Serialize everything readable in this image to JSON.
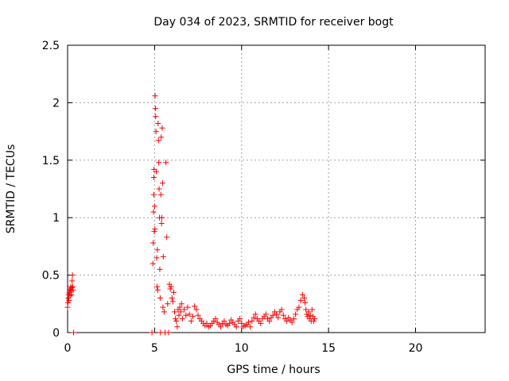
{
  "chart_data": {
    "type": "scatter",
    "title": "Day 034 of 2023, SRMTID for receiver bogt",
    "xlabel": "GPS time / hours",
    "ylabel": "SRMTID / TECUs",
    "xlim": [
      0,
      24
    ],
    "ylim": [
      0,
      2.5
    ],
    "x_ticks": [
      0,
      5,
      10,
      15,
      20
    ],
    "x_tick_labels": [
      "0",
      "5",
      "10",
      "15",
      "20"
    ],
    "y_ticks": [
      0,
      0.5,
      1,
      1.5,
      2,
      2.5
    ],
    "y_tick_labels": [
      "0",
      "0.5",
      "1",
      "1.5",
      "2",
      "2.5"
    ],
    "grid": true,
    "marker": "+",
    "series_color": "#ff0000",
    "series": [
      {
        "name": "SRMTID",
        "points": [
          [
            0.0,
            0.22
          ],
          [
            0.02,
            0.26
          ],
          [
            0.04,
            0.3
          ],
          [
            0.06,
            0.33
          ],
          [
            0.08,
            0.28
          ],
          [
            0.1,
            0.35
          ],
          [
            0.12,
            0.37
          ],
          [
            0.14,
            0.32
          ],
          [
            0.16,
            0.38
          ],
          [
            0.18,
            0.4
          ],
          [
            0.2,
            0.36
          ],
          [
            0.22,
            0.33
          ],
          [
            0.24,
            0.39
          ],
          [
            0.26,
            0.45
          ],
          [
            0.28,
            0.5
          ],
          [
            0.3,
            0.4
          ],
          [
            0.32,
            0.37
          ],
          [
            0.34,
            0.0
          ],
          [
            4.85,
            0.0
          ],
          [
            4.9,
            0.6
          ],
          [
            4.92,
            0.78
          ],
          [
            4.94,
            1.05
          ],
          [
            4.95,
            1.2
          ],
          [
            4.96,
            1.35
          ],
          [
            4.97,
            1.42
          ],
          [
            4.98,
            0.88
          ],
          [
            5.0,
            1.1
          ],
          [
            5.02,
            0.9
          ],
          [
            5.03,
            2.06
          ],
          [
            5.05,
            1.95
          ],
          [
            5.06,
            1.88
          ],
          [
            5.08,
            1.75
          ],
          [
            5.1,
            1.4
          ],
          [
            5.12,
            0.65
          ],
          [
            5.14,
            0.4
          ],
          [
            5.16,
            0.72
          ],
          [
            5.18,
            0.37
          ],
          [
            5.2,
            1.82
          ],
          [
            5.22,
            1.67
          ],
          [
            5.24,
            1.48
          ],
          [
            5.26,
            1.25
          ],
          [
            5.28,
            1.0
          ],
          [
            5.3,
            0.55
          ],
          [
            5.32,
            0.3
          ],
          [
            5.34,
            0.0
          ],
          [
            5.36,
            1.2
          ],
          [
            5.38,
            1.7
          ],
          [
            5.4,
            0.95
          ],
          [
            5.42,
            1.0
          ],
          [
            5.44,
            1.78
          ],
          [
            5.46,
            1.3
          ],
          [
            5.48,
            0.22
          ],
          [
            5.5,
            0.66
          ],
          [
            5.55,
            0.18
          ],
          [
            5.6,
            0.0
          ],
          [
            5.65,
            1.48
          ],
          [
            5.7,
            0.83
          ],
          [
            5.75,
            0.25
          ],
          [
            5.8,
            0.0
          ],
          [
            5.85,
            0.42
          ],
          [
            5.9,
            0.38
          ],
          [
            5.95,
            0.4
          ],
          [
            6.0,
            0.3
          ],
          [
            6.05,
            0.27
          ],
          [
            6.1,
            0.35
          ],
          [
            6.15,
            0.18
          ],
          [
            6.2,
            0.12
          ],
          [
            6.25,
            0.1
          ],
          [
            6.3,
            0.05
          ],
          [
            6.35,
            0.2
          ],
          [
            6.4,
            0.15
          ],
          [
            6.45,
            0.22
          ],
          [
            6.5,
            0.18
          ],
          [
            6.55,
            0.25
          ],
          [
            6.6,
            0.12
          ],
          [
            6.7,
            0.2
          ],
          [
            6.8,
            0.15
          ],
          [
            6.9,
            0.22
          ],
          [
            7.0,
            0.16
          ],
          [
            7.1,
            0.1
          ],
          [
            7.2,
            0.14
          ],
          [
            7.3,
            0.23
          ],
          [
            7.4,
            0.2
          ],
          [
            7.5,
            0.15
          ],
          [
            7.6,
            0.12
          ],
          [
            7.7,
            0.1
          ],
          [
            7.8,
            0.08
          ],
          [
            7.9,
            0.06
          ],
          [
            8.0,
            0.08
          ],
          [
            8.1,
            0.05
          ],
          [
            8.2,
            0.06
          ],
          [
            8.3,
            0.08
          ],
          [
            8.4,
            0.1
          ],
          [
            8.5,
            0.12
          ],
          [
            8.6,
            0.09
          ],
          [
            8.7,
            0.07
          ],
          [
            8.8,
            0.05
          ],
          [
            8.9,
            0.08
          ],
          [
            9.0,
            0.1
          ],
          [
            9.1,
            0.07
          ],
          [
            9.2,
            0.06
          ],
          [
            9.3,
            0.08
          ],
          [
            9.4,
            0.11
          ],
          [
            9.5,
            0.09
          ],
          [
            9.6,
            0.07
          ],
          [
            9.7,
            0.05
          ],
          [
            9.8,
            0.1
          ],
          [
            9.9,
            0.12
          ],
          [
            10.0,
            0.08
          ],
          [
            10.1,
            0.05
          ],
          [
            10.2,
            0.06
          ],
          [
            10.3,
            0.07
          ],
          [
            10.4,
            0.09
          ],
          [
            10.5,
            0.05
          ],
          [
            10.6,
            0.1
          ],
          [
            10.7,
            0.13
          ],
          [
            10.8,
            0.16
          ],
          [
            10.9,
            0.12
          ],
          [
            11.0,
            0.1
          ],
          [
            11.1,
            0.08
          ],
          [
            11.2,
            0.12
          ],
          [
            11.3,
            0.14
          ],
          [
            11.4,
            0.16
          ],
          [
            11.5,
            0.12
          ],
          [
            11.6,
            0.1
          ],
          [
            11.7,
            0.13
          ],
          [
            11.8,
            0.15
          ],
          [
            11.9,
            0.18
          ],
          [
            12.0,
            0.16
          ],
          [
            12.1,
            0.13
          ],
          [
            12.2,
            0.18
          ],
          [
            12.3,
            0.2
          ],
          [
            12.4,
            0.15
          ],
          [
            12.5,
            0.12
          ],
          [
            12.6,
            0.1
          ],
          [
            12.7,
            0.13
          ],
          [
            12.8,
            0.11
          ],
          [
            12.9,
            0.09
          ],
          [
            13.0,
            0.12
          ],
          [
            13.1,
            0.16
          ],
          [
            13.2,
            0.2
          ],
          [
            13.3,
            0.22
          ],
          [
            13.4,
            0.28
          ],
          [
            13.5,
            0.33
          ],
          [
            13.6,
            0.3
          ],
          [
            13.65,
            0.26
          ],
          [
            13.7,
            0.2
          ],
          [
            13.75,
            0.16
          ],
          [
            13.8,
            0.14
          ],
          [
            13.85,
            0.18
          ],
          [
            13.9,
            0.12
          ],
          [
            13.95,
            0.15
          ],
          [
            14.0,
            0.1
          ],
          [
            14.05,
            0.2
          ],
          [
            14.1,
            0.14
          ],
          [
            14.15,
            0.1
          ],
          [
            14.2,
            0.12
          ]
        ]
      }
    ]
  }
}
